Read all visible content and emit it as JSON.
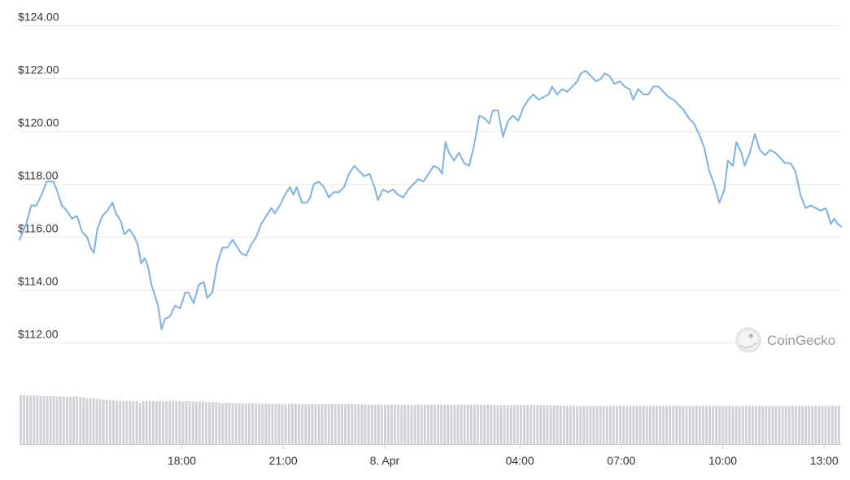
{
  "chart_data": {
    "type": "line",
    "title": "",
    "xlabel": "",
    "ylabel": "",
    "ylim": [
      111.3,
      124.3
    ],
    "y_ticks": [
      "$112.00",
      "$114.00",
      "$116.00",
      "$118.00",
      "$120.00",
      "$122.00",
      "$124.00"
    ],
    "y_tick_values": [
      112,
      114,
      116,
      118,
      120,
      122,
      124
    ],
    "x_ticks": [
      {
        "label": "18:00",
        "t": 4.8
      },
      {
        "label": "21:00",
        "t": 7.8
      },
      {
        "label": "8. Apr",
        "t": 10.8
      },
      {
        "label": "04:00",
        "t": 14.8
      },
      {
        "label": "07:00",
        "t": 17.8
      },
      {
        "label": "10:00",
        "t": 20.8
      },
      {
        "label": "13:00",
        "t": 23.8
      }
    ],
    "xlim": [
      0,
      24.3
    ],
    "grid": true,
    "legend": "none",
    "colors": {
      "line": "#7db2e6",
      "volume": "#d0d1d6",
      "grid": "#e9e9e9",
      "axis": "#cccccc"
    },
    "series": [
      {
        "values": [
          [
            0.0,
            115.9
          ],
          [
            0.2,
            116.5
          ],
          [
            0.35,
            117.2
          ],
          [
            0.5,
            117.2
          ],
          [
            0.65,
            117.6
          ],
          [
            0.8,
            118.1
          ],
          [
            1.0,
            118.1
          ],
          [
            1.1,
            117.8
          ],
          [
            1.25,
            117.2
          ],
          [
            1.4,
            117.0
          ],
          [
            1.55,
            116.7
          ],
          [
            1.7,
            116.8
          ],
          [
            1.85,
            116.2
          ],
          [
            2.0,
            116.0
          ],
          [
            2.1,
            115.6
          ],
          [
            2.2,
            115.4
          ],
          [
            2.3,
            116.3
          ],
          [
            2.45,
            116.8
          ],
          [
            2.6,
            117.0
          ],
          [
            2.75,
            117.3
          ],
          [
            2.85,
            116.9
          ],
          [
            3.0,
            116.6
          ],
          [
            3.1,
            116.1
          ],
          [
            3.25,
            116.3
          ],
          [
            3.4,
            116.0
          ],
          [
            3.5,
            115.7
          ],
          [
            3.6,
            115.0
          ],
          [
            3.7,
            115.2
          ],
          [
            3.8,
            114.9
          ],
          [
            3.9,
            114.2
          ],
          [
            4.0,
            113.8
          ],
          [
            4.1,
            113.4
          ],
          [
            4.2,
            112.5
          ],
          [
            4.3,
            112.9
          ],
          [
            4.45,
            113.0
          ],
          [
            4.6,
            113.4
          ],
          [
            4.75,
            113.3
          ],
          [
            4.9,
            113.9
          ],
          [
            5.0,
            113.9
          ],
          [
            5.15,
            113.5
          ],
          [
            5.3,
            114.2
          ],
          [
            5.45,
            114.3
          ],
          [
            5.55,
            113.7
          ],
          [
            5.7,
            113.9
          ],
          [
            5.85,
            115.0
          ],
          [
            6.0,
            115.6
          ],
          [
            6.15,
            115.6
          ],
          [
            6.3,
            115.9
          ],
          [
            6.45,
            115.6
          ],
          [
            6.55,
            115.4
          ],
          [
            6.7,
            115.3
          ],
          [
            6.85,
            115.7
          ],
          [
            7.0,
            116.0
          ],
          [
            7.15,
            116.5
          ],
          [
            7.3,
            116.8
          ],
          [
            7.45,
            117.1
          ],
          [
            7.55,
            116.9
          ],
          [
            7.7,
            117.2
          ],
          [
            7.85,
            117.6
          ],
          [
            8.0,
            117.9
          ],
          [
            8.1,
            117.6
          ],
          [
            8.2,
            117.9
          ],
          [
            8.35,
            117.3
          ],
          [
            8.5,
            117.3
          ],
          [
            8.6,
            117.5
          ],
          [
            8.7,
            118.0
          ],
          [
            8.85,
            118.1
          ],
          [
            9.0,
            117.9
          ],
          [
            9.15,
            117.5
          ],
          [
            9.3,
            117.7
          ],
          [
            9.45,
            117.7
          ],
          [
            9.6,
            117.9
          ],
          [
            9.75,
            118.4
          ],
          [
            9.9,
            118.7
          ],
          [
            10.05,
            118.5
          ],
          [
            10.2,
            118.3
          ],
          [
            10.35,
            118.4
          ],
          [
            10.5,
            117.9
          ],
          [
            10.6,
            117.4
          ],
          [
            10.75,
            117.8
          ],
          [
            10.9,
            117.7
          ],
          [
            11.05,
            117.8
          ],
          [
            11.2,
            117.6
          ],
          [
            11.35,
            117.5
          ],
          [
            11.5,
            117.8
          ],
          [
            11.65,
            118.0
          ],
          [
            11.8,
            118.2
          ],
          [
            11.95,
            118.1
          ],
          [
            12.1,
            118.4
          ],
          [
            12.25,
            118.7
          ],
          [
            12.4,
            118.6
          ],
          [
            12.5,
            118.4
          ],
          [
            12.6,
            119.6
          ],
          [
            12.7,
            119.2
          ],
          [
            12.85,
            118.9
          ],
          [
            13.0,
            119.2
          ],
          [
            13.15,
            118.8
          ],
          [
            13.3,
            118.7
          ],
          [
            13.45,
            119.5
          ],
          [
            13.6,
            120.6
          ],
          [
            13.75,
            120.5
          ],
          [
            13.9,
            120.3
          ],
          [
            14.0,
            120.8
          ],
          [
            14.15,
            120.8
          ],
          [
            14.3,
            119.8
          ],
          [
            14.45,
            120.4
          ],
          [
            14.6,
            120.6
          ],
          [
            14.75,
            120.4
          ],
          [
            14.9,
            120.9
          ],
          [
            15.05,
            121.2
          ],
          [
            15.2,
            121.4
          ],
          [
            15.35,
            121.2
          ],
          [
            15.5,
            121.3
          ],
          [
            15.65,
            121.4
          ],
          [
            15.75,
            121.7
          ],
          [
            15.9,
            121.4
          ],
          [
            16.05,
            121.6
          ],
          [
            16.2,
            121.5
          ],
          [
            16.35,
            121.7
          ],
          [
            16.5,
            121.9
          ],
          [
            16.6,
            122.2
          ],
          [
            16.75,
            122.3
          ],
          [
            16.9,
            122.1
          ],
          [
            17.05,
            121.9
          ],
          [
            17.2,
            122.0
          ],
          [
            17.3,
            122.2
          ],
          [
            17.45,
            122.1
          ],
          [
            17.6,
            121.8
          ],
          [
            17.75,
            121.9
          ],
          [
            17.9,
            121.7
          ],
          [
            18.05,
            121.6
          ],
          [
            18.15,
            121.2
          ],
          [
            18.3,
            121.6
          ],
          [
            18.45,
            121.4
          ],
          [
            18.6,
            121.4
          ],
          [
            18.75,
            121.7
          ],
          [
            18.9,
            121.7
          ],
          [
            19.05,
            121.5
          ],
          [
            19.2,
            121.3
          ],
          [
            19.35,
            121.2
          ],
          [
            19.5,
            121.0
          ],
          [
            19.65,
            120.8
          ],
          [
            19.8,
            120.5
          ],
          [
            19.95,
            120.3
          ],
          [
            20.1,
            119.9
          ],
          [
            20.25,
            119.4
          ],
          [
            20.4,
            118.5
          ],
          [
            20.55,
            118.0
          ],
          [
            20.7,
            117.3
          ],
          [
            20.85,
            117.8
          ],
          [
            20.95,
            118.9
          ],
          [
            21.1,
            118.7
          ],
          [
            21.2,
            119.6
          ],
          [
            21.35,
            119.2
          ],
          [
            21.45,
            118.7
          ],
          [
            21.6,
            119.2
          ],
          [
            21.75,
            119.9
          ],
          [
            21.9,
            119.3
          ],
          [
            22.05,
            119.1
          ],
          [
            22.2,
            119.3
          ],
          [
            22.35,
            119.2
          ],
          [
            22.5,
            119.0
          ],
          [
            22.65,
            118.8
          ],
          [
            22.8,
            118.8
          ],
          [
            22.95,
            118.5
          ],
          [
            23.1,
            117.6
          ],
          [
            23.25,
            117.1
          ],
          [
            23.4,
            117.2
          ],
          [
            23.55,
            117.1
          ],
          [
            23.7,
            117.0
          ],
          [
            23.85,
            117.1
          ],
          [
            24.0,
            116.5
          ],
          [
            24.1,
            116.7
          ],
          [
            24.2,
            116.5
          ],
          [
            24.3,
            116.4
          ]
        ]
      }
    ],
    "volume": [
      0.96,
      0.96,
      0.95,
      0.95,
      0.95,
      0.95,
      0.94,
      0.94,
      0.94,
      0.94,
      0.94,
      0.93,
      0.93,
      0.93,
      0.92,
      0.92,
      0.93,
      0.94,
      0.92,
      0.91,
      0.9,
      0.9,
      0.9,
      0.89,
      0.88,
      0.87,
      0.87,
      0.86,
      0.86,
      0.85,
      0.85,
      0.84,
      0.84,
      0.84,
      0.84,
      0.84,
      0.8,
      0.84,
      0.84,
      0.84,
      0.84,
      0.84,
      0.84,
      0.83,
      0.84,
      0.84,
      0.85,
      0.84,
      0.84,
      0.84,
      0.84,
      0.84,
      0.83,
      0.83,
      0.83,
      0.83,
      0.82,
      0.82,
      0.82,
      0.82,
      0.81,
      0.8,
      0.81,
      0.81,
      0.8,
      0.8,
      0.8,
      0.8,
      0.79,
      0.79,
      0.8,
      0.79,
      0.8,
      0.79,
      0.79,
      0.79,
      0.79,
      0.79,
      0.79,
      0.78,
      0.79,
      0.79,
      0.79,
      0.79,
      0.79,
      0.78,
      0.78,
      0.78,
      0.78,
      0.78,
      0.78,
      0.78,
      0.78,
      0.78,
      0.78,
      0.78,
      0.78,
      0.78,
      0.78,
      0.78,
      0.78,
      0.78,
      0.78,
      0.78,
      0.77,
      0.77,
      0.77,
      0.77,
      0.77,
      0.77,
      0.77,
      0.77,
      0.77,
      0.77,
      0.77,
      0.77,
      0.77,
      0.77,
      0.77,
      0.77,
      0.77,
      0.77,
      0.77,
      0.77,
      0.77,
      0.77,
      0.77,
      0.77,
      0.77,
      0.77,
      0.77,
      0.77,
      0.77,
      0.77,
      0.77,
      0.77,
      0.77,
      0.77,
      0.77,
      0.77,
      0.77,
      0.77,
      0.76,
      0.76,
      0.76,
      0.76,
      0.76,
      0.76,
      0.76,
      0.76,
      0.76,
      0.76,
      0.76,
      0.76,
      0.76,
      0.76,
      0.76,
      0.76,
      0.76,
      0.76,
      0.76,
      0.75,
      0.76,
      0.75,
      0.75,
      0.75,
      0.75,
      0.75,
      0.75,
      0.75,
      0.75,
      0.75,
      0.75,
      0.75,
      0.75,
      0.75,
      0.75,
      0.75,
      0.75,
      0.75,
      0.75,
      0.75,
      0.75,
      0.75,
      0.75,
      0.75,
      0.75,
      0.75,
      0.75,
      0.75,
      0.75,
      0.75,
      0.75,
      0.75,
      0.75,
      0.75,
      0.75,
      0.75,
      0.75,
      0.75,
      0.75,
      0.75,
      0.75,
      0.75,
      0.75,
      0.75,
      0.75,
      0.75,
      0.75,
      0.75,
      0.75,
      0.75,
      0.74,
      0.75,
      0.75,
      0.75,
      0.75,
      0.74,
      0.75,
      0.75,
      0.75,
      0.75,
      0.74,
      0.75,
      0.75,
      0.75,
      0.75,
      0.75,
      0.74,
      0.75,
      0.75,
      0.75,
      0.75,
      0.75,
      0.75,
      0.75,
      0.75,
      0.74,
      0.75,
      0.75,
      0.75,
      0.75,
      0.75,
      0.75,
      0.75,
      0.75,
      0.75,
      0.75
    ]
  },
  "watermark": {
    "text": "CoinGecko",
    "icon": "gecko-logo-icon"
  }
}
